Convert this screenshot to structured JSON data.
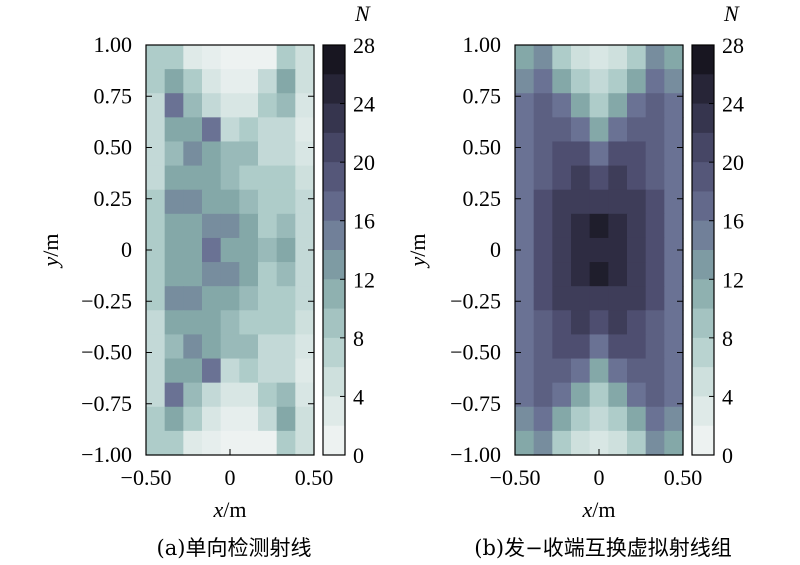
{
  "figure": {
    "panels": [
      {
        "caption_label": "(a)",
        "caption_text": "单向检测射线",
        "xlabel_var": "x",
        "xlabel_unit": "/m",
        "ylabel_var": "y",
        "ylabel_unit": "/m",
        "x_ticks": [
          "−0.50",
          "0",
          "0.50"
        ],
        "y_ticks": [
          "1.00",
          "0.75",
          "0.50",
          "0.25",
          "0",
          "−0.25",
          "−0.50",
          "−0.75",
          "−1.00"
        ],
        "colorbar_title": "N",
        "colorbar_ticks": [
          "28",
          "24",
          "20",
          "16",
          "12",
          "8",
          "4",
          "0"
        ]
      },
      {
        "caption_label": "(b)",
        "caption_text": "发−收端互换虚拟射线组",
        "xlabel_var": "x",
        "xlabel_unit": "/m",
        "ylabel_var": "y",
        "ylabel_unit": "/m",
        "x_ticks": [
          "−0.50",
          "0",
          "0.50"
        ],
        "y_ticks": [
          "1.00",
          "0.75",
          "0.50",
          "0.25",
          "0",
          "−0.25",
          "−0.50",
          "−0.75",
          "−1.00"
        ],
        "colorbar_title": "N",
        "colorbar_ticks": [
          "28",
          "24",
          "20",
          "16",
          "12",
          "8",
          "4",
          "0"
        ]
      }
    ]
  },
  "chart_data": [
    {
      "type": "heatmap",
      "title": "",
      "xlabel": "x/m",
      "ylabel": "y/m",
      "xlim": [
        -0.5,
        0.5
      ],
      "ylim": [
        -1.0,
        1.0
      ],
      "colorbar": {
        "label": "N",
        "range": [
          0,
          28
        ],
        "ticks": [
          0,
          4,
          8,
          12,
          16,
          20,
          24,
          28
        ]
      },
      "x": [
        -0.5,
        -0.375,
        -0.25,
        -0.125,
        0,
        0.125,
        0.25,
        0.375,
        0.5
      ],
      "y": [
        1.0,
        0.875,
        0.75,
        0.625,
        0.5,
        0.375,
        0.25,
        0.125,
        0,
        -0.125,
        -0.25,
        -0.375,
        -0.5,
        -0.625,
        -0.75,
        -0.875,
        -1.0
      ],
      "values": [
        [
          8,
          8,
          3,
          2,
          1,
          1,
          1,
          8,
          5
        ],
        [
          8,
          12,
          8,
          4,
          2,
          2,
          6,
          12,
          5
        ],
        [
          6,
          16,
          10,
          6,
          4,
          4,
          8,
          10,
          4
        ],
        [
          6,
          12,
          12,
          16,
          6,
          8,
          6,
          6,
          3
        ],
        [
          6,
          10,
          14,
          12,
          10,
          10,
          6,
          6,
          4
        ],
        [
          6,
          12,
          12,
          12,
          10,
          8,
          8,
          8,
          5
        ],
        [
          8,
          14,
          14,
          12,
          12,
          10,
          8,
          8,
          6
        ],
        [
          8,
          12,
          12,
          14,
          14,
          12,
          8,
          10,
          6
        ],
        [
          8,
          12,
          12,
          16,
          12,
          12,
          10,
          12,
          6
        ],
        [
          8,
          12,
          12,
          14,
          14,
          12,
          8,
          10,
          6
        ],
        [
          8,
          14,
          14,
          12,
          12,
          10,
          8,
          8,
          6
        ],
        [
          6,
          12,
          12,
          12,
          10,
          8,
          8,
          8,
          5
        ],
        [
          6,
          10,
          14,
          12,
          10,
          10,
          6,
          6,
          4
        ],
        [
          6,
          12,
          12,
          16,
          6,
          8,
          6,
          6,
          3
        ],
        [
          6,
          16,
          10,
          6,
          4,
          4,
          8,
          10,
          4
        ],
        [
          8,
          12,
          8,
          4,
          2,
          2,
          6,
          12,
          5
        ],
        [
          8,
          8,
          3,
          2,
          1,
          1,
          1,
          8,
          5
        ]
      ]
    },
    {
      "type": "heatmap",
      "title": "",
      "xlabel": "x/m",
      "ylabel": "y/m",
      "xlim": [
        -0.5,
        0.5
      ],
      "ylim": [
        -1.0,
        1.0
      ],
      "colorbar": {
        "label": "N",
        "range": [
          0,
          28
        ],
        "ticks": [
          0,
          4,
          8,
          12,
          16,
          20,
          24,
          28
        ]
      },
      "x": [
        -0.5,
        -0.375,
        -0.25,
        -0.125,
        0,
        0.125,
        0.25,
        0.375,
        0.5
      ],
      "y": [
        1.0,
        0.875,
        0.75,
        0.625,
        0.5,
        0.375,
        0.25,
        0.125,
        0,
        -0.125,
        -0.25,
        -0.375,
        -0.5,
        -0.625,
        -0.75,
        -0.875,
        -1.0
      ],
      "values": [
        [
          12,
          14,
          8,
          5,
          4,
          5,
          8,
          14,
          12
        ],
        [
          14,
          16,
          12,
          8,
          6,
          8,
          12,
          16,
          14
        ],
        [
          16,
          18,
          16,
          12,
          8,
          12,
          16,
          18,
          16
        ],
        [
          16,
          18,
          18,
          16,
          12,
          16,
          18,
          18,
          16
        ],
        [
          16,
          18,
          20,
          20,
          16,
          20,
          20,
          18,
          16
        ],
        [
          16,
          18,
          20,
          22,
          20,
          22,
          20,
          18,
          16
        ],
        [
          16,
          20,
          22,
          22,
          22,
          22,
          22,
          20,
          16
        ],
        [
          16,
          20,
          22,
          24,
          26,
          24,
          22,
          20,
          16
        ],
        [
          16,
          20,
          22,
          24,
          24,
          24,
          22,
          20,
          16
        ],
        [
          16,
          20,
          22,
          24,
          26,
          24,
          22,
          20,
          16
        ],
        [
          16,
          20,
          22,
          22,
          22,
          22,
          22,
          20,
          16
        ],
        [
          16,
          18,
          20,
          22,
          20,
          22,
          20,
          18,
          16
        ],
        [
          16,
          18,
          20,
          20,
          16,
          20,
          20,
          18,
          16
        ],
        [
          16,
          18,
          18,
          16,
          12,
          16,
          18,
          18,
          16
        ],
        [
          16,
          18,
          16,
          12,
          8,
          12,
          16,
          18,
          16
        ],
        [
          14,
          16,
          12,
          8,
          6,
          8,
          12,
          16,
          14
        ],
        [
          12,
          14,
          8,
          5,
          4,
          5,
          8,
          14,
          12
        ]
      ]
    }
  ]
}
